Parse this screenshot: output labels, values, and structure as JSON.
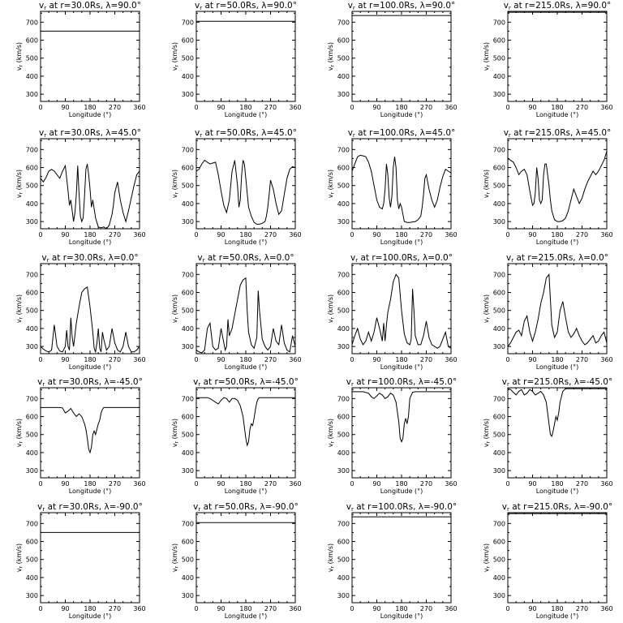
{
  "xlabel": "Longitude (°)",
  "ylabel": "v_r (km/s)",
  "xticks": [
    "0",
    "90",
    "180",
    "270",
    "360"
  ],
  "yticks": [
    "300",
    "400",
    "500",
    "600",
    "700"
  ],
  "xlim": [
    0,
    360
  ],
  "ylim": [
    260,
    760
  ],
  "chart_data": [
    {
      "type": "line",
      "title": "vr at r=30.0Rs, λ=90.0°",
      "radius": "30.0",
      "lat": "90.0",
      "x": [
        0,
        360
      ],
      "y": [
        650,
        650
      ]
    },
    {
      "type": "line",
      "title": "vr at r=50.0Rs, λ=90.0°",
      "radius": "50.0",
      "lat": "90.0",
      "x": [
        0,
        360
      ],
      "y": [
        705,
        705
      ]
    },
    {
      "type": "line",
      "title": "vr at r=100.0Rs, λ=90.0°",
      "radius": "100.0",
      "lat": "90.0",
      "x": [
        0,
        360
      ],
      "y": [
        737,
        737
      ]
    },
    {
      "type": "line",
      "title": "vr at r=215.0Rs, λ=90.0°",
      "radius": "215.0",
      "lat": "90.0",
      "x": [
        0,
        360
      ],
      "y": [
        755,
        755
      ]
    },
    {
      "type": "line",
      "title": "vr at r=30.0Rs, λ=45.0°",
      "radius": "30.0",
      "lat": "45.0",
      "x": [
        0,
        10,
        20,
        30,
        40,
        50,
        60,
        70,
        80,
        90,
        100,
        105,
        110,
        115,
        120,
        125,
        130,
        135,
        140,
        145,
        150,
        155,
        160,
        165,
        170,
        175,
        180,
        185,
        190,
        200,
        210,
        220,
        230,
        240,
        245,
        250,
        255,
        260,
        265,
        270,
        280,
        290,
        300,
        310,
        320,
        330,
        340,
        350,
        360
      ],
      "y": [
        540,
        520,
        545,
        580,
        590,
        580,
        560,
        540,
        580,
        610,
        470,
        390,
        420,
        360,
        300,
        350,
        450,
        610,
        460,
        330,
        300,
        320,
        440,
        590,
        620,
        560,
        480,
        380,
        420,
        320,
        270,
        265,
        270,
        260,
        270,
        280,
        310,
        340,
        390,
        460,
        520,
        420,
        350,
        300,
        360,
        430,
        500,
        560,
        580
      ]
    },
    {
      "type": "line",
      "title": "vr at r=50.0Rs, λ=45.0°",
      "radius": "50.0",
      "lat": "45.0",
      "x": [
        0,
        10,
        20,
        30,
        40,
        50,
        60,
        70,
        80,
        90,
        100,
        110,
        120,
        130,
        140,
        150,
        155,
        160,
        165,
        170,
        175,
        180,
        185,
        190,
        200,
        210,
        220,
        230,
        240,
        250,
        255,
        260,
        265,
        270,
        280,
        290,
        300,
        310,
        320,
        330,
        340,
        350,
        360
      ],
      "y": [
        580,
        590,
        620,
        640,
        630,
        620,
        625,
        630,
        560,
        470,
        390,
        350,
        420,
        580,
        640,
        500,
        380,
        420,
        560,
        640,
        620,
        540,
        460,
        380,
        330,
        295,
        285,
        285,
        290,
        300,
        330,
        380,
        450,
        530,
        480,
        400,
        340,
        360,
        450,
        540,
        590,
        605,
        600
      ]
    },
    {
      "type": "line",
      "title": "vr at r=100.0Rs, λ=45.0°",
      "radius": "100.0",
      "lat": "45.0",
      "x": [
        0,
        10,
        20,
        30,
        40,
        50,
        60,
        70,
        80,
        90,
        100,
        110,
        115,
        120,
        125,
        130,
        135,
        140,
        145,
        150,
        155,
        160,
        165,
        170,
        175,
        180,
        185,
        190,
        200,
        210,
        220,
        230,
        240,
        250,
        255,
        260,
        265,
        270,
        280,
        290,
        300,
        310,
        320,
        330,
        340,
        350,
        360
      ],
      "y": [
        580,
        620,
        660,
        668,
        665,
        660,
        630,
        580,
        500,
        420,
        380,
        370,
        400,
        480,
        620,
        560,
        430,
        380,
        440,
        600,
        660,
        600,
        420,
        370,
        400,
        380,
        340,
        300,
        295,
        295,
        298,
        300,
        310,
        330,
        380,
        450,
        540,
        560,
        480,
        420,
        380,
        420,
        490,
        550,
        590,
        580,
        570
      ]
    },
    {
      "type": "line",
      "title": "vr at r=215.0Rs, λ=45.0°",
      "radius": "215.0",
      "lat": "45.0",
      "x": [
        0,
        10,
        20,
        30,
        40,
        50,
        60,
        70,
        80,
        90,
        95,
        100,
        105,
        110,
        115,
        120,
        125,
        130,
        135,
        140,
        145,
        150,
        155,
        160,
        170,
        180,
        190,
        200,
        210,
        220,
        230,
        240,
        250,
        260,
        270,
        280,
        290,
        300,
        310,
        320,
        330,
        340,
        350,
        360
      ],
      "y": [
        650,
        640,
        630,
        600,
        560,
        580,
        590,
        560,
        470,
        390,
        400,
        460,
        600,
        540,
        420,
        400,
        420,
        560,
        620,
        620,
        560,
        500,
        420,
        360,
        310,
        300,
        300,
        305,
        320,
        360,
        420,
        480,
        440,
        400,
        430,
        480,
        520,
        550,
        580,
        560,
        580,
        610,
        640,
        690
      ]
    },
    {
      "type": "line",
      "title": "vr at r=30.0Rs, λ=0.0°",
      "radius": "30.0",
      "lat": "0.0",
      "x": [
        0,
        10,
        20,
        30,
        40,
        50,
        60,
        70,
        80,
        90,
        95,
        100,
        105,
        110,
        115,
        120,
        130,
        140,
        150,
        160,
        170,
        180,
        190,
        195,
        200,
        205,
        210,
        215,
        220,
        225,
        230,
        240,
        250,
        260,
        270,
        280,
        290,
        300,
        310,
        320,
        330,
        340,
        350,
        360
      ],
      "y": [
        300,
        285,
        275,
        270,
        280,
        420,
        300,
        275,
        270,
        300,
        390,
        300,
        280,
        460,
        350,
        300,
        430,
        520,
        600,
        620,
        630,
        520,
        380,
        290,
        270,
        320,
        400,
        290,
        270,
        380,
        340,
        280,
        300,
        400,
        320,
        280,
        270,
        300,
        380,
        300,
        270,
        270,
        280,
        300
      ]
    },
    {
      "type": "line",
      "title": "vr at r=50.0Rs, λ=0.0°",
      "radius": "50.0",
      "lat": "0.0",
      "x": [
        0,
        10,
        20,
        30,
        40,
        50,
        60,
        70,
        80,
        90,
        100,
        105,
        110,
        115,
        120,
        130,
        140,
        150,
        160,
        170,
        180,
        185,
        190,
        200,
        210,
        220,
        225,
        230,
        240,
        250,
        260,
        270,
        280,
        290,
        300,
        310,
        320,
        330,
        340,
        350,
        360
      ],
      "y": [
        280,
        270,
        265,
        280,
        400,
        430,
        300,
        280,
        290,
        400,
        320,
        280,
        300,
        450,
        360,
        400,
        480,
        560,
        640,
        670,
        680,
        500,
        380,
        310,
        290,
        350,
        610,
        500,
        340,
        300,
        280,
        300,
        400,
        330,
        310,
        420,
        320,
        280,
        270,
        360,
        300
      ]
    },
    {
      "type": "line",
      "title": "vr at r=100.0Rs, λ=0.0°",
      "radius": "100.0",
      "lat": "0.0",
      "x": [
        0,
        10,
        20,
        30,
        40,
        50,
        60,
        70,
        80,
        90,
        100,
        110,
        115,
        120,
        125,
        130,
        140,
        150,
        160,
        170,
        180,
        190,
        200,
        210,
        215,
        220,
        225,
        230,
        240,
        250,
        260,
        270,
        280,
        290,
        300,
        310,
        320,
        330,
        340,
        350,
        360
      ],
      "y": [
        310,
        360,
        400,
        340,
        310,
        330,
        380,
        330,
        380,
        460,
        400,
        330,
        430,
        330,
        420,
        490,
        560,
        660,
        700,
        680,
        500,
        370,
        320,
        310,
        340,
        620,
        500,
        360,
        310,
        310,
        360,
        440,
        350,
        310,
        300,
        290,
        300,
        340,
        380,
        300,
        290
      ]
    },
    {
      "type": "line",
      "title": "vr at r=215.0Rs, λ=0.0°",
      "radius": "215.0",
      "lat": "0.0",
      "x": [
        0,
        10,
        20,
        30,
        40,
        50,
        60,
        70,
        80,
        90,
        100,
        110,
        120,
        130,
        140,
        150,
        155,
        160,
        170,
        180,
        190,
        200,
        210,
        220,
        230,
        240,
        250,
        260,
        270,
        280,
        290,
        300,
        310,
        320,
        330,
        340,
        350,
        360
      ],
      "y": [
        300,
        320,
        350,
        380,
        390,
        360,
        440,
        470,
        380,
        330,
        380,
        450,
        540,
        600,
        680,
        700,
        560,
        420,
        350,
        380,
        500,
        550,
        460,
        380,
        350,
        370,
        400,
        360,
        330,
        310,
        320,
        340,
        360,
        320,
        330,
        360,
        380,
        320
      ]
    },
    {
      "type": "line",
      "title": "vr at r=30.0Rs, λ=-45.0°",
      "radius": "30.0",
      "lat": "-45.0",
      "x": [
        0,
        20,
        40,
        60,
        70,
        80,
        90,
        100,
        110,
        120,
        130,
        140,
        150,
        155,
        160,
        165,
        170,
        175,
        180,
        185,
        190,
        195,
        200,
        205,
        210,
        215,
        220,
        225,
        230,
        240,
        250,
        260,
        280,
        300,
        320,
        340,
        360
      ],
      "y": [
        650,
        650,
        650,
        650,
        650,
        648,
        620,
        630,
        645,
        620,
        600,
        615,
        600,
        580,
        560,
        530,
        480,
        420,
        400,
        430,
        500,
        520,
        500,
        530,
        560,
        580,
        620,
        640,
        650,
        650,
        650,
        650,
        650,
        650,
        650,
        650,
        650
      ]
    },
    {
      "type": "line",
      "title": "vr at r=50.0Rs, λ=-45.0°",
      "radius": "50.0",
      "lat": "-45.0",
      "x": [
        0,
        20,
        40,
        50,
        60,
        70,
        80,
        90,
        100,
        110,
        120,
        130,
        140,
        150,
        160,
        170,
        180,
        185,
        190,
        195,
        200,
        205,
        210,
        215,
        220,
        225,
        230,
        240,
        250,
        270,
        300,
        330,
        360
      ],
      "y": [
        705,
        705,
        705,
        700,
        690,
        680,
        670,
        690,
        705,
        700,
        680,
        700,
        700,
        690,
        660,
        600,
        480,
        440,
        460,
        530,
        560,
        550,
        590,
        640,
        680,
        700,
        705,
        705,
        705,
        705,
        705,
        705,
        705
      ]
    },
    {
      "type": "line",
      "title": "vr at r=100.0Rs, λ=-45.0°",
      "radius": "100.0",
      "lat": "-45.0",
      "x": [
        0,
        20,
        40,
        60,
        70,
        80,
        90,
        100,
        110,
        120,
        130,
        140,
        150,
        160,
        170,
        175,
        180,
        185,
        190,
        195,
        200,
        205,
        210,
        220,
        230,
        240,
        260,
        300,
        330,
        360
      ],
      "y": [
        738,
        738,
        738,
        730,
        710,
        700,
        715,
        730,
        720,
        700,
        710,
        730,
        720,
        680,
        570,
        480,
        460,
        480,
        560,
        590,
        560,
        600,
        700,
        735,
        738,
        738,
        738,
        738,
        738,
        738
      ]
    },
    {
      "type": "line",
      "title": "vr at r=215.0Rs, λ=-45.0°",
      "radius": "215.0",
      "lat": "-45.0",
      "x": [
        0,
        10,
        20,
        30,
        40,
        50,
        60,
        70,
        80,
        90,
        100,
        110,
        120,
        130,
        140,
        150,
        155,
        160,
        165,
        170,
        175,
        180,
        185,
        190,
        200,
        210,
        220,
        240,
        270,
        300,
        330,
        360
      ],
      "y": [
        755,
        750,
        735,
        720,
        740,
        750,
        720,
        730,
        750,
        740,
        720,
        730,
        740,
        720,
        680,
        560,
        500,
        490,
        520,
        560,
        600,
        580,
        620,
        680,
        740,
        755,
        755,
        755,
        755,
        755,
        755,
        755
      ]
    },
    {
      "type": "line",
      "title": "vr at r=30.0Rs, λ=-90.0°",
      "radius": "30.0",
      "lat": "-90.0",
      "x": [
        0,
        360
      ],
      "y": [
        650,
        650
      ]
    },
    {
      "type": "line",
      "title": "vr at r=50.0Rs, λ=-90.0°",
      "radius": "50.0",
      "lat": "-90.0",
      "x": [
        0,
        360
      ],
      "y": [
        705,
        705
      ]
    },
    {
      "type": "line",
      "title": "vr at r=100.0Rs, λ=-90.0°",
      "radius": "100.0",
      "lat": "-90.0",
      "x": [
        0,
        360
      ],
      "y": [
        737,
        737
      ]
    },
    {
      "type": "line",
      "title": "vr at r=215.0Rs, λ=-90.0°",
      "radius": "215.0",
      "lat": "-90.0",
      "x": [
        0,
        360
      ],
      "y": [
        755,
        755
      ]
    }
  ]
}
